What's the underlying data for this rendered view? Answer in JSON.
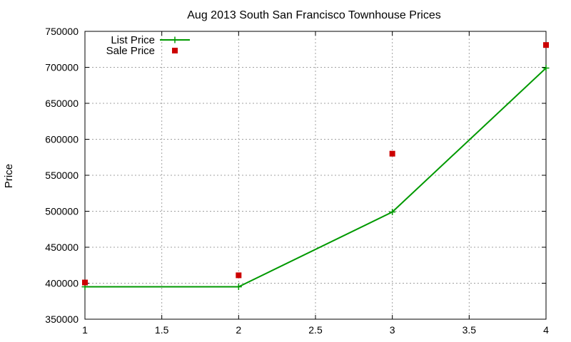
{
  "chart_data": {
    "type": "line",
    "title": "Aug 2013 South San Francisco Townhouse Prices",
    "xlabel": "",
    "ylabel": "Price",
    "xlim": [
      1,
      4
    ],
    "ylim": [
      350000,
      750000
    ],
    "xticks": [
      1,
      1.5,
      2,
      2.5,
      3,
      3.5,
      4
    ],
    "xtick_labels": [
      "1",
      "1.5",
      "2",
      "2.5",
      "3",
      "3.5",
      "4"
    ],
    "yticks": [
      350000,
      400000,
      450000,
      500000,
      550000,
      600000,
      650000,
      700000,
      750000
    ],
    "ytick_labels": [
      "350000",
      "400000",
      "450000",
      "500000",
      "550000",
      "600000",
      "650000",
      "700000",
      "750000"
    ],
    "grid": true,
    "legend_position": "top-left",
    "series": [
      {
        "name": "List Price",
        "style": "linespoints",
        "marker": "plus",
        "color": "#009900",
        "x": [
          1,
          2,
          3,
          4
        ],
        "y": [
          395000,
          395000,
          499000,
          699000
        ]
      },
      {
        "name": "Sale Price",
        "style": "points",
        "marker": "square",
        "color": "#cc0000",
        "x": [
          1,
          2,
          3,
          4
        ],
        "y": [
          401000,
          411000,
          580000,
          731000
        ]
      }
    ]
  }
}
